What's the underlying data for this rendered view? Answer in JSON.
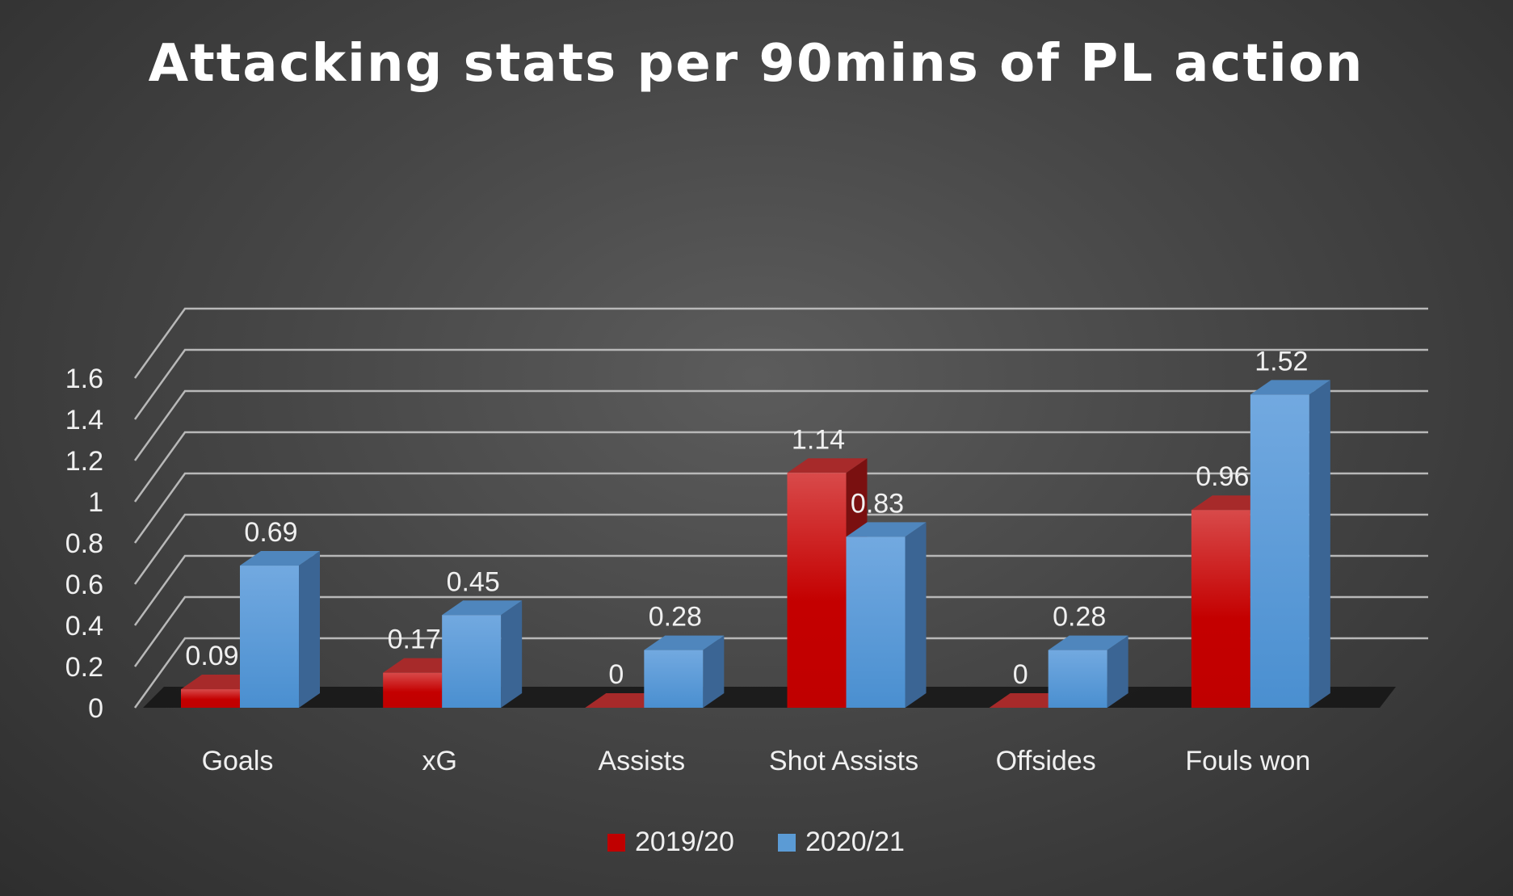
{
  "chart_data": {
    "type": "bar",
    "title": "Attacking stats per 90mins of PL action",
    "categories": [
      "Goals",
      "xG",
      "Assists",
      "Shot Assists",
      "Offsides",
      "Fouls won"
    ],
    "series": [
      {
        "name": "2019/20",
        "values": [
          0.09,
          0.17,
          0,
          1.14,
          0,
          0.96
        ],
        "color": "#c00000"
      },
      {
        "name": "2020/21",
        "values": [
          0.69,
          0.45,
          0.28,
          0.83,
          0.28,
          1.52
        ],
        "color": "#5b9bd5"
      }
    ],
    "data_labels": [
      [
        "0.09",
        "0.17",
        "0",
        "1.14",
        "0",
        "0.96"
      ],
      [
        "0.69",
        "0.45",
        "0.28",
        "0.83",
        "0.28",
        "1.52"
      ]
    ],
    "y_ticks": [
      "0",
      "0.2",
      "0.4",
      "0.6",
      "0.8",
      "1",
      "1.2",
      "1.4",
      "1.6"
    ],
    "ylim": [
      0,
      1.6
    ],
    "grid": true,
    "legend_position": "bottom",
    "style": "3d-clustered-column"
  }
}
